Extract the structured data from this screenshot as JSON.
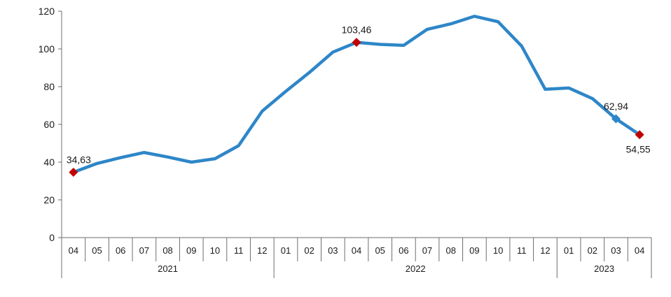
{
  "chart_data": {
    "type": "line",
    "title": "",
    "xlabel": "",
    "ylabel": "",
    "ylim": [
      0,
      120
    ],
    "yticks": [
      0,
      20,
      40,
      60,
      80,
      100,
      120
    ],
    "grid": false,
    "legend": "none",
    "categories": [
      "04",
      "05",
      "06",
      "07",
      "08",
      "09",
      "10",
      "11",
      "12",
      "01",
      "02",
      "03",
      "04",
      "05",
      "06",
      "07",
      "08",
      "09",
      "10",
      "11",
      "12",
      "01",
      "02",
      "03",
      "04"
    ],
    "year_groups": [
      {
        "label": "2021",
        "count": 9
      },
      {
        "label": "2022",
        "count": 12
      },
      {
        "label": "2023",
        "count": 4
      }
    ],
    "series": [
      {
        "color": "#2E86C8",
        "values": [
          34.63,
          39.3,
          42.4,
          45.1,
          42.7,
          40.0,
          41.8,
          48.7,
          67.0,
          77.5,
          87.5,
          98.3,
          103.46,
          102.4,
          101.9,
          110.4,
          113.3,
          117.3,
          114.4,
          101.5,
          78.6,
          79.3,
          73.7,
          62.94,
          54.55
        ]
      }
    ],
    "annotations": [
      {
        "index": 0,
        "text": "34,63",
        "marker": "diamond",
        "color": "#C00000",
        "position": "above"
      },
      {
        "index": 12,
        "text": "103,46",
        "marker": "diamond",
        "color": "#C00000",
        "position": "above"
      },
      {
        "index": 23,
        "text": "62,94",
        "marker": "diamond",
        "color": "#2E86C8",
        "position": "above"
      },
      {
        "index": 24,
        "text": "54,55",
        "marker": "diamond",
        "color": "#C00000",
        "position": "below"
      }
    ]
  }
}
